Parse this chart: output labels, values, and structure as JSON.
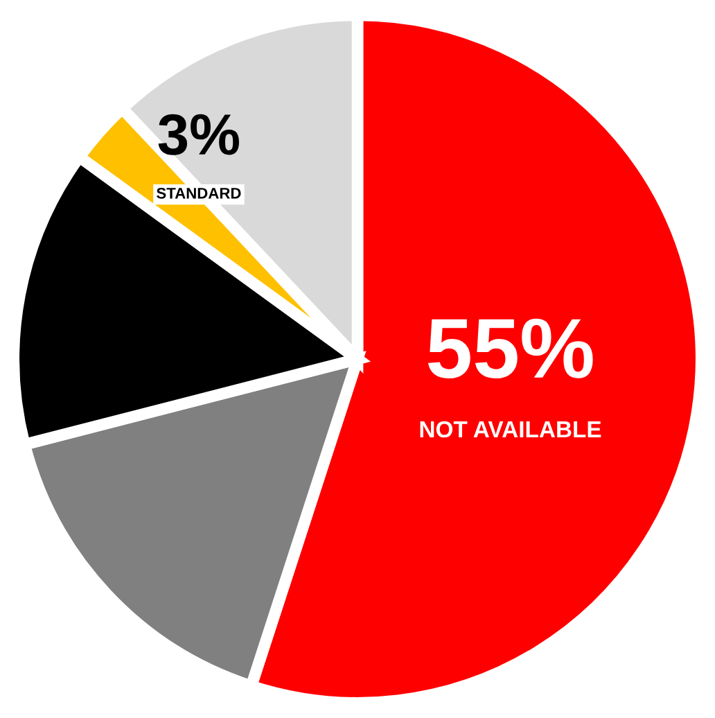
{
  "chart_data": {
    "type": "pie",
    "categories": [
      "NOT AVAILABLE",
      null,
      null,
      "STANDARD",
      null
    ],
    "values": [
      55,
      16,
      14,
      3,
      12
    ],
    "value_labels": [
      "55%",
      null,
      null,
      "3%",
      null
    ],
    "colors": [
      "#ff0000",
      "#808080",
      "#000000",
      "#ffc000",
      "#d9d9d9"
    ],
    "legend": false
  }
}
